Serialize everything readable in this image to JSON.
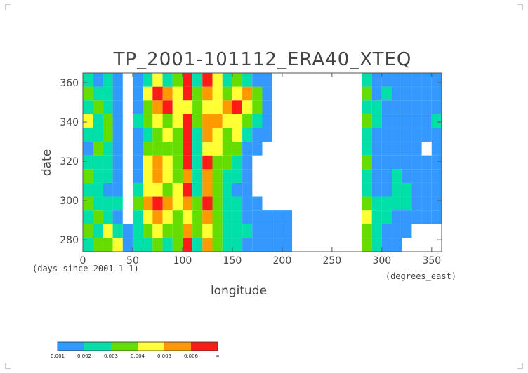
{
  "chart_data": {
    "type": "heatmap",
    "title": "TP_2001-101112_ERA40_XTEQ",
    "xlabel": "longitude",
    "ylabel": "date",
    "x_units": "(degrees_east)",
    "y_units": "(days since 2001-1-1)",
    "xlim": [
      0,
      360
    ],
    "ylim": [
      274,
      365
    ],
    "xticks": [
      0,
      50,
      100,
      150,
      200,
      250,
      300,
      350
    ],
    "yticks": [
      280,
      300,
      320,
      340,
      360
    ],
    "xbins": [
      0,
      10,
      20,
      30,
      40,
      50,
      60,
      70,
      80,
      90,
      100,
      110,
      120,
      130,
      140,
      150,
      160,
      170,
      180,
      190,
      200,
      210,
      220,
      230,
      240,
      250,
      260,
      270,
      280,
      290,
      300,
      310,
      320,
      330,
      340,
      350,
      360
    ],
    "ybins": [
      274,
      281,
      288,
      295,
      302,
      309,
      316,
      323,
      330,
      337,
      344,
      351,
      358,
      365
    ],
    "levels": [
      0.001,
      0.002,
      0.003,
      0.004,
      0.005,
      0.006
    ],
    "colorbar_end_label": "∞",
    "colors": [
      "#3399ff",
      "#00e0a8",
      "#66dd00",
      "#ffff33",
      "#ff9900",
      "#ff1a1a"
    ],
    "z": [
      [
        0.0025,
        0.0035,
        0.0035,
        0.0045,
        0.0015,
        0.0025,
        0.0025,
        0.0035,
        0.0025,
        0.0035,
        0.007,
        0.0025,
        0.0055,
        0.0035,
        0.0025,
        0.0025,
        0.0015,
        0.0015,
        0.0015,
        0.0015,
        0.0015,
        0,
        0,
        0,
        0,
        0,
        0,
        0,
        0.0035,
        0.0025,
        0.0015,
        0.0015,
        0,
        0,
        0,
        0
      ],
      [
        0.0035,
        0.0025,
        0.0045,
        0.0025,
        0.0015,
        0.0025,
        0.0035,
        0.0045,
        0.0035,
        0.0035,
        0.0055,
        0.0035,
        0.0045,
        0.0035,
        0.0025,
        0.0025,
        0.0025,
        0.0015,
        0.0015,
        0.0015,
        0.0015,
        0,
        0,
        0,
        0,
        0,
        0,
        0,
        0.0035,
        0.0025,
        0.0015,
        0.0015,
        0.0015,
        0,
        0,
        0
      ],
      [
        0.0025,
        0.0035,
        0.0025,
        0.0015,
        0,
        0.0025,
        0.0045,
        0.0055,
        0.0045,
        0.0035,
        0.0045,
        0.0035,
        0.0055,
        0.0035,
        0.0025,
        0.0025,
        0.0015,
        0.0015,
        0.0015,
        0.0015,
        0.0015,
        0,
        0,
        0,
        0,
        0,
        0,
        0,
        0.0045,
        0.0025,
        0.0025,
        0.0015,
        0.0015,
        0.0015,
        0.0015,
        0.0015
      ],
      [
        0.0035,
        0.0025,
        0.0025,
        0.0025,
        0,
        0.0035,
        0.0055,
        0.007,
        0.0055,
        0.0045,
        0.0055,
        0.0035,
        0.007,
        0.0035,
        0.0025,
        0.0025,
        0.0015,
        0.0015,
        0,
        0,
        0,
        0,
        0,
        0,
        0,
        0,
        0,
        0,
        0.0035,
        0.0025,
        0.0025,
        0.0025,
        0.0025,
        0.0015,
        0.0015,
        0.0015
      ],
      [
        0.0025,
        0.0025,
        0.0015,
        0.0015,
        0,
        0.0025,
        0.0045,
        0.0045,
        0.0035,
        0.0045,
        0.007,
        0.0025,
        0.0055,
        0.0035,
        0.0025,
        0.0015,
        0.0015,
        0,
        0,
        0,
        0,
        0,
        0,
        0,
        0,
        0,
        0,
        0,
        0.0025,
        0.0015,
        0.0015,
        0.0025,
        0.0025,
        0.0015,
        0.0015,
        0.0015
      ],
      [
        0.0035,
        0.0025,
        0.0025,
        0.0015,
        0,
        0.0015,
        0.0045,
        0.0055,
        0.0045,
        0.0035,
        0.0055,
        0.0025,
        0.0055,
        0.0035,
        0.0025,
        0.0025,
        0.0015,
        0,
        0,
        0,
        0,
        0,
        0,
        0,
        0,
        0,
        0,
        0,
        0.0025,
        0.0015,
        0.0015,
        0.0025,
        0.0015,
        0.0015,
        0.0015,
        0.0015
      ],
      [
        0.0025,
        0.0025,
        0.0025,
        0.0015,
        0,
        0.0015,
        0.0045,
        0.0055,
        0.0045,
        0.0035,
        0.007,
        0.0025,
        0.007,
        0.0035,
        0.0035,
        0.0025,
        0.0015,
        0,
        0,
        0,
        0,
        0,
        0,
        0,
        0,
        0,
        0,
        0,
        0.0035,
        0.0015,
        0.0015,
        0.0015,
        0.0015,
        0.0015,
        0.0015,
        0.0015
      ],
      [
        0.0015,
        0.0035,
        0.0025,
        0.0015,
        0,
        0.0015,
        0.0035,
        0.0035,
        0.0035,
        0.0035,
        0.007,
        0.0025,
        0.0045,
        0.0045,
        0.0035,
        0.0035,
        0.0015,
        0.0015,
        0,
        0,
        0,
        0,
        0,
        0,
        0,
        0,
        0,
        0,
        0.0025,
        0.0015,
        0.0015,
        0.0015,
        0.0015,
        0.0015,
        0,
        0.0015
      ],
      [
        0.0025,
        0.0025,
        0.0035,
        0.0015,
        0,
        0.0015,
        0.0025,
        0.0035,
        0.0045,
        0.0035,
        0.007,
        0.0025,
        0.0055,
        0.0045,
        0.0035,
        0.0045,
        0.0025,
        0.0015,
        0.0015,
        0,
        0,
        0,
        0,
        0,
        0,
        0,
        0,
        0,
        0.0025,
        0.0015,
        0.0015,
        0.0015,
        0.0015,
        0.0015,
        0.0015,
        0.0015
      ],
      [
        0.0045,
        0.0025,
        0.0035,
        0.0015,
        0,
        0.0025,
        0.0035,
        0.0045,
        0.0035,
        0.0045,
        0.007,
        0.0035,
        0.0055,
        0.0055,
        0.0045,
        0.0045,
        0.0035,
        0.0025,
        0.0015,
        0,
        0,
        0,
        0,
        0,
        0,
        0,
        0,
        0,
        0.0035,
        0.0025,
        0.0015,
        0.0015,
        0.0015,
        0.0015,
        0.0015,
        0.0025
      ],
      [
        0.0025,
        0.0035,
        0.0025,
        0.0015,
        0,
        0.0015,
        0.0035,
        0.0055,
        0.007,
        0.0045,
        0.0045,
        0.0035,
        0.0045,
        0.0045,
        0.0055,
        0.007,
        0.0045,
        0.0035,
        0.0015,
        0,
        0,
        0,
        0,
        0,
        0,
        0,
        0,
        0,
        0.0025,
        0.0025,
        0.0015,
        0.0015,
        0.0015,
        0.0015,
        0.0015,
        0.0015
      ],
      [
        0.0035,
        0.0025,
        0.0025,
        0.0015,
        0,
        0.0015,
        0.0045,
        0.007,
        0.0055,
        0.0045,
        0.007,
        0.0035,
        0.0055,
        0.0045,
        0.0035,
        0.0045,
        0.0055,
        0.0035,
        0.0015,
        0,
        0,
        0,
        0,
        0,
        0,
        0,
        0,
        0,
        0.0035,
        0.0015,
        0.0025,
        0.0015,
        0.0015,
        0.0015,
        0.0015,
        0.0015
      ],
      [
        0.0025,
        0.0015,
        0.0025,
        0.0015,
        0,
        0.0015,
        0.0025,
        0.0045,
        0.0025,
        0.0035,
        0.007,
        0.0025,
        0.007,
        0.0045,
        0.0025,
        0.0035,
        0.0025,
        0.0015,
        0.0015,
        0,
        0,
        0,
        0,
        0,
        0,
        0,
        0,
        0,
        0.0025,
        0.0015,
        0.0015,
        0.0015,
        0.0015,
        0.0015,
        0.0015,
        0.0015
      ]
    ]
  }
}
